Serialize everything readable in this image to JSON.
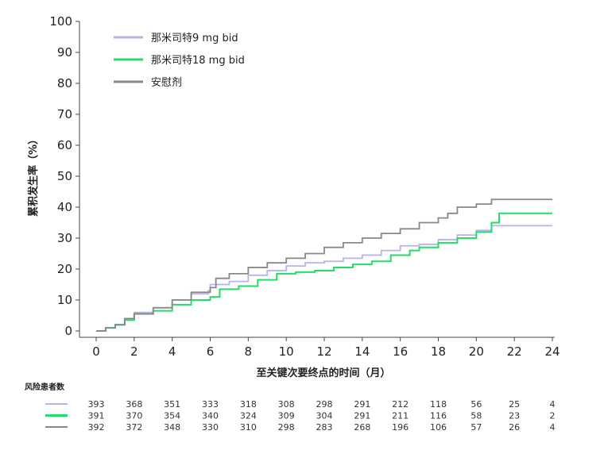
{
  "chart_data": {
    "type": "line",
    "xlabel": "至关键次要终点的时间（月）",
    "ylabel": "累积发生率（%）",
    "xlim": [
      0,
      24
    ],
    "ylim": [
      0,
      100
    ],
    "xticks": [
      "0",
      "2",
      "4",
      "6",
      "8",
      "10",
      "12",
      "14",
      "16",
      "18",
      "20",
      "22",
      "24"
    ],
    "yticks": [
      "0",
      "10",
      "20",
      "30",
      "40",
      "50",
      "60",
      "70",
      "80",
      "90",
      "100"
    ],
    "grid": false,
    "legend_position": "top-left",
    "series": [
      {
        "name": "那米司特9 mg bid",
        "color": "#b8b4e8",
        "points": [
          [
            0,
            0
          ],
          [
            0.5,
            1
          ],
          [
            1,
            2
          ],
          [
            1.5,
            4
          ],
          [
            2,
            6
          ],
          [
            3,
            7.5
          ],
          [
            4,
            10
          ],
          [
            5,
            12
          ],
          [
            5.9,
            13
          ],
          [
            6,
            15
          ],
          [
            7,
            16
          ],
          [
            8,
            18
          ],
          [
            9,
            19.5
          ],
          [
            10,
            21
          ],
          [
            11,
            22
          ],
          [
            12,
            22.5
          ],
          [
            13,
            23.5
          ],
          [
            14,
            24.5
          ],
          [
            15,
            26
          ],
          [
            16,
            27.5
          ],
          [
            17,
            28
          ],
          [
            18,
            29.5
          ],
          [
            19,
            31
          ],
          [
            20,
            32.5
          ],
          [
            20.8,
            34
          ],
          [
            24,
            34
          ]
        ]
      },
      {
        "name": "那米司特18 mg bid",
        "color": "#22dd66",
        "points": [
          [
            0,
            0
          ],
          [
            0.5,
            1
          ],
          [
            1,
            2
          ],
          [
            1.5,
            3.5
          ],
          [
            2,
            5.5
          ],
          [
            3,
            6.5
          ],
          [
            4,
            8.5
          ],
          [
            5,
            10
          ],
          [
            6,
            11
          ],
          [
            6.5,
            13.5
          ],
          [
            7.5,
            14.5
          ],
          [
            8.5,
            16.5
          ],
          [
            9.5,
            18.5
          ],
          [
            10.5,
            19
          ],
          [
            11.5,
            19.5
          ],
          [
            12.5,
            20.5
          ],
          [
            13.5,
            21.5
          ],
          [
            14.5,
            22.5
          ],
          [
            15.5,
            24.5
          ],
          [
            16.5,
            26
          ],
          [
            17,
            27
          ],
          [
            18,
            28.5
          ],
          [
            19,
            30
          ],
          [
            20,
            32
          ],
          [
            20.8,
            35
          ],
          [
            21.2,
            38
          ],
          [
            24,
            38
          ]
        ]
      },
      {
        "name": "安慰剂",
        "color": "#888888",
        "points": [
          [
            0,
            0
          ],
          [
            0.5,
            1
          ],
          [
            1,
            2
          ],
          [
            1.5,
            4
          ],
          [
            2,
            5.5
          ],
          [
            3,
            7.5
          ],
          [
            4,
            10
          ],
          [
            5,
            12.5
          ],
          [
            6,
            14
          ],
          [
            6.3,
            17
          ],
          [
            7,
            18.5
          ],
          [
            8,
            20.5
          ],
          [
            9,
            22
          ],
          [
            10,
            23.5
          ],
          [
            11,
            25
          ],
          [
            12,
            27
          ],
          [
            13,
            28.5
          ],
          [
            14,
            30
          ],
          [
            15,
            31.5
          ],
          [
            16,
            33
          ],
          [
            17,
            35
          ],
          [
            18,
            36.5
          ],
          [
            18.5,
            38
          ],
          [
            19,
            40
          ],
          [
            20,
            41
          ],
          [
            20.8,
            42.5
          ],
          [
            24,
            42.5
          ]
        ]
      }
    ],
    "risk_table": {
      "title": "风险患者数",
      "rows": [
        {
          "color": "#b8b4e8",
          "values": [
            "393",
            "368",
            "351",
            "333",
            "318",
            "308",
            "298",
            "291",
            "212",
            "118",
            "56",
            "25",
            "4"
          ]
        },
        {
          "color": "#22dd66",
          "values": [
            "391",
            "370",
            "354",
            "340",
            "324",
            "309",
            "304",
            "291",
            "211",
            "116",
            "58",
            "23",
            "2"
          ]
        },
        {
          "color": "#888888",
          "values": [
            "392",
            "372",
            "348",
            "330",
            "310",
            "298",
            "283",
            "268",
            "196",
            "106",
            "57",
            "26",
            "4"
          ]
        }
      ]
    }
  }
}
